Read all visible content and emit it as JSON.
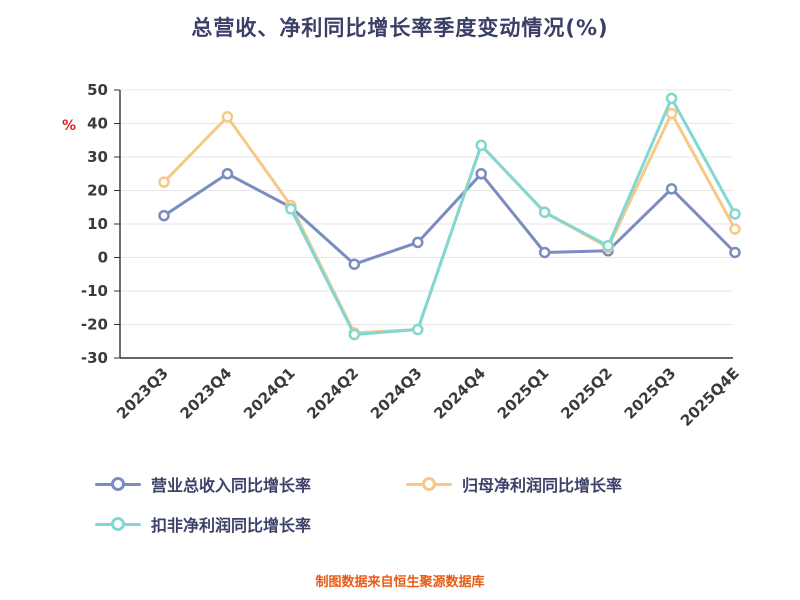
{
  "chart_data": {
    "type": "line",
    "title": "总营收、净利同比增长率季度变动情况(%)",
    "ylabel": "%",
    "xlabel": "",
    "categories": [
      "2023Q3",
      "2023Q4",
      "2024Q1",
      "2024Q2",
      "2024Q3",
      "2024Q4",
      "2025Q1",
      "2025Q2",
      "2025Q3",
      "2025Q4E"
    ],
    "ylim": [
      -30,
      50
    ],
    "ytick_step": 10,
    "grid": true,
    "legend_position": "bottom",
    "series": [
      {
        "name": "营业总收入同比增长率",
        "color": "#7b8cc0",
        "values": [
          12.5,
          25,
          15,
          -2,
          4.5,
          25,
          1.5,
          2,
          20.5,
          1.5
        ]
      },
      {
        "name": "归母净利润同比增长率",
        "color": "#f7c886",
        "values": [
          22.5,
          42,
          15.5,
          -22.5,
          -21.5,
          33.5,
          13.5,
          3,
          43,
          8.5
        ]
      },
      {
        "name": "扣非净利润同比增长率",
        "color": "#82d7d2",
        "values": [
          null,
          null,
          14.5,
          -23,
          -21.5,
          33.5,
          13.5,
          3.5,
          47.5,
          13
        ]
      }
    ],
    "colors": {
      "title_text": "#3a3f66",
      "axis_labels": "#3a3a3a",
      "axis_line": "#333333",
      "gridline": "#e6e6e6",
      "ylabel_unit": "#e02121",
      "legend_text": "#3c4168",
      "source_text": "#e85c16",
      "background": "#ffffff"
    },
    "source_note": "制图数据来自恒生聚源数据库"
  }
}
